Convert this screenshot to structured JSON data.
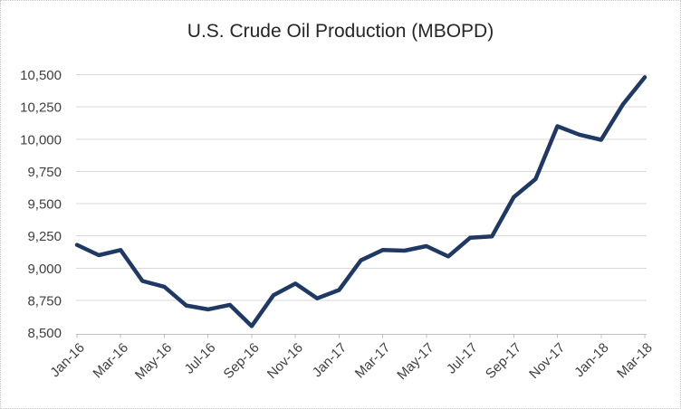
{
  "chart_data": {
    "type": "line",
    "title": "U.S. Crude Oil Production (MBOPD)",
    "series_name": "U.S. crude oil production (MBOPD)",
    "categories": [
      "Jan-16",
      "Feb-16",
      "Mar-16",
      "Apr-16",
      "May-16",
      "Jun-16",
      "Jul-16",
      "Aug-16",
      "Sep-16",
      "Oct-16",
      "Nov-16",
      "Dec-16",
      "Jan-17",
      "Feb-17",
      "Mar-17",
      "Apr-17",
      "May-17",
      "Jun-17",
      "Jul-17",
      "Aug-17",
      "Sep-17",
      "Oct-17",
      "Nov-17",
      "Dec-17",
      "Jan-18",
      "Feb-18",
      "Mar-18"
    ],
    "values": [
      9180,
      9100,
      9140,
      8900,
      8855,
      8710,
      8680,
      8715,
      8550,
      8790,
      8880,
      8765,
      8830,
      9060,
      9140,
      9135,
      9170,
      9090,
      9235,
      9245,
      9550,
      9690,
      10100,
      10035,
      9995,
      10270,
      10480
    ],
    "xlabel": "",
    "ylabel": "",
    "ylim": [
      8500,
      10500
    ],
    "ytick_step": 250,
    "ytick_labels": [
      "8,500",
      "8,750",
      "9,000",
      "9,250",
      "9,500",
      "9,750",
      "10,000",
      "10,250",
      "10,500"
    ],
    "x_label_interval": 2,
    "x_tick_labels": [
      "Jan-16",
      "Mar-16",
      "May-16",
      "Jul-16",
      "Sep-16",
      "Nov-16",
      "Jan-17",
      "Mar-17",
      "May-17",
      "Jul-17",
      "Sep-17",
      "Nov-17",
      "Jan-18",
      "Mar-18"
    ],
    "grid": true,
    "legend_position": "none",
    "colors": {
      "line": "#1f3864",
      "gridline": "#d9d9d9",
      "axis": "#bfbfbf",
      "tick_label": "#404040",
      "title": "#262626",
      "background": "#ffffff",
      "frame_border": "#c8c8c8"
    }
  }
}
